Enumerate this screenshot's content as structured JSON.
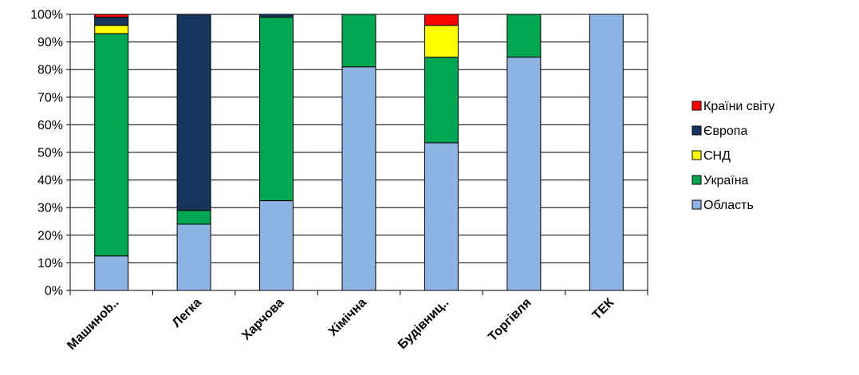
{
  "chart_data": {
    "type": "bar",
    "stacked": true,
    "categories": [
      "Машинобуд.",
      "Легка",
      "Харчова",
      "Хімічна",
      "Будівництв.",
      "Торгівля",
      "ТЕК"
    ],
    "category_labels": [
      "Машинob..",
      "Легка",
      "Харчова",
      "Хімічна",
      "Будівниц..",
      "Торгівля",
      "ТЕК"
    ],
    "series": [
      {
        "name": "Область",
        "color": "#8EB4E3",
        "values": [
          12.5,
          24,
          32.5,
          81,
          53.5,
          84.5,
          100
        ]
      },
      {
        "name": "Україна",
        "color": "#00A651",
        "values": [
          80.5,
          5,
          66.5,
          19,
          31,
          15.5,
          0
        ]
      },
      {
        "name": "СНД",
        "color": "#FFFF00",
        "values": [
          3,
          0,
          0,
          0,
          11.5,
          0,
          0
        ]
      },
      {
        "name": "Європа",
        "color": "#17365D",
        "values": [
          3,
          71,
          1,
          0,
          0,
          0,
          0
        ]
      },
      {
        "name": "Країни світу",
        "color": "#FF0000",
        "values": [
          1,
          0,
          0,
          0,
          4,
          0,
          0
        ]
      }
    ],
    "yticks": [
      "0%",
      "10%",
      "20%",
      "30%",
      "40%",
      "50%",
      "60%",
      "70%",
      "80%",
      "90%",
      "100%"
    ],
    "ylim": [
      0,
      100
    ],
    "grid": true,
    "legend_position": "right",
    "legend_order": [
      "Країни світу",
      "Європа",
      "СНД",
      "Україна",
      "Область"
    ],
    "title": "",
    "xlabel": "",
    "ylabel": ""
  }
}
